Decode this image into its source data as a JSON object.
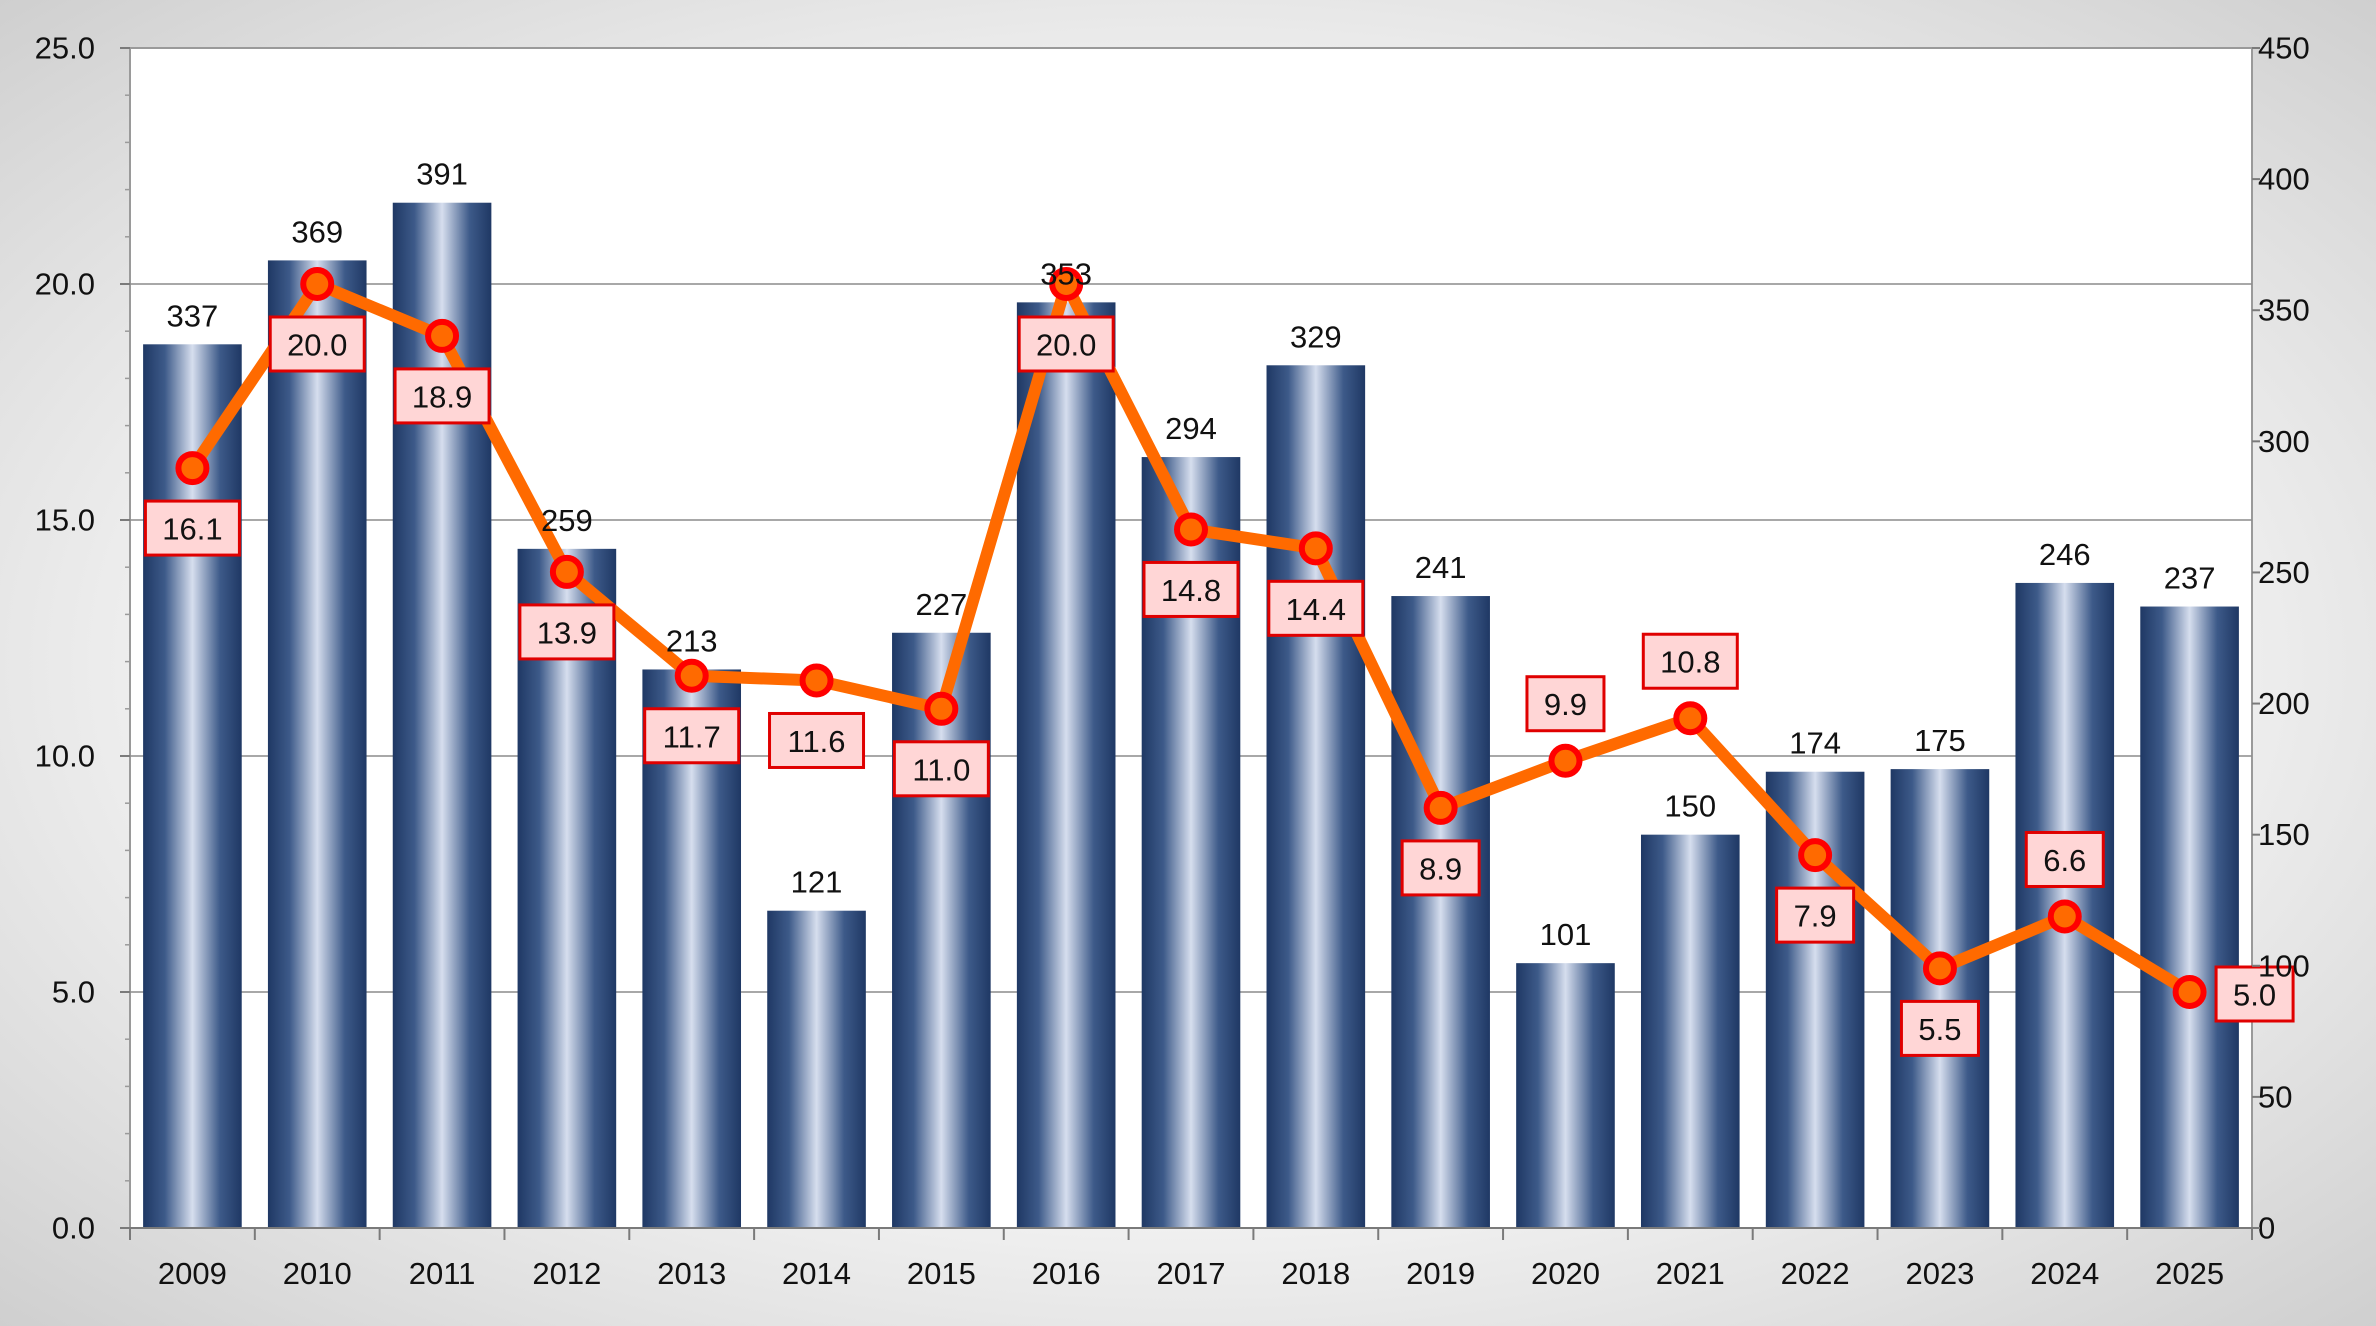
{
  "chart_data": {
    "type": "bar+line",
    "title": "",
    "xlabel": "",
    "ylabel_left": "",
    "ylabel_right": "",
    "categories": [
      "2009",
      "2010",
      "2011",
      "2012",
      "2013",
      "2014",
      "2015",
      "2016",
      "2017",
      "2018",
      "2019",
      "2020",
      "2021",
      "2022",
      "2023",
      "2024",
      "2025"
    ],
    "series": [
      {
        "name": "bars",
        "type": "bar",
        "axis": "right",
        "values": [
          337,
          369,
          391,
          259,
          213,
          121,
          227,
          353,
          294,
          329,
          241,
          101,
          150,
          174,
          175,
          246,
          237
        ],
        "color": "#1f3864"
      },
      {
        "name": "line",
        "type": "line",
        "axis": "left",
        "values": [
          16.1,
          20.0,
          18.9,
          13.9,
          11.7,
          11.6,
          11.0,
          20.0,
          14.8,
          14.4,
          8.9,
          9.9,
          10.8,
          7.9,
          5.5,
          6.6,
          5.0
        ],
        "color": "#ff6a00",
        "marker_color": "#ff0000",
        "label_bg": "#ffd6d6",
        "label_border": "#e00000"
      }
    ],
    "left_axis": {
      "min": 0,
      "max": 25,
      "step": 5,
      "tick_labels": [
        "0.0",
        "5.0",
        "10.0",
        "15.0",
        "20.0",
        "25.0"
      ]
    },
    "right_axis": {
      "min": 0,
      "max": 450,
      "step": 50,
      "tick_labels": [
        "0",
        "50",
        "100",
        "150",
        "200",
        "250",
        "300",
        "350",
        "400",
        "450"
      ]
    },
    "grid": true
  }
}
